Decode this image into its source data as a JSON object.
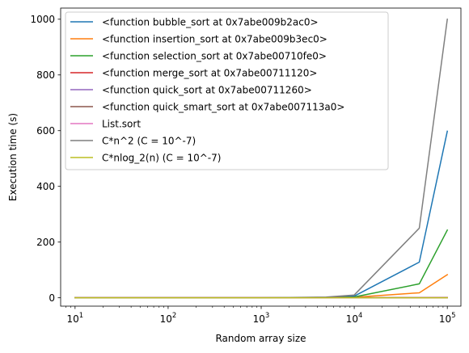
{
  "chart_data": {
    "type": "line",
    "xlabel": "Random array size",
    "ylabel": "Execution time (s)",
    "xscale": "log",
    "xlim": [
      7,
      140000
    ],
    "ylim": [
      -30,
      1040
    ],
    "x": [
      10,
      100,
      1000,
      5000,
      10000,
      50000,
      100000
    ],
    "xticks": [
      10,
      100,
      1000,
      10000,
      100000
    ],
    "xtick_labels": [
      {
        "base": "10",
        "exp": "1"
      },
      {
        "base": "10",
        "exp": "2"
      },
      {
        "base": "10",
        "exp": "3"
      },
      {
        "base": "10",
        "exp": "4"
      },
      {
        "base": "10",
        "exp": "5"
      }
    ],
    "yticks": [
      0,
      200,
      400,
      600,
      800,
      1000
    ],
    "ytick_labels": [
      "0",
      "200",
      "400",
      "600",
      "800",
      "1000"
    ],
    "legend_position": "top-left",
    "series": [
      {
        "name": "<function bubble_sort at 0x7abe009b2ac0>",
        "color": "#1f77b4",
        "values": [
          0,
          0,
          0,
          1.5,
          6,
          128,
          598
        ]
      },
      {
        "name": "<function insertion_sort at 0x7abe009b3ec0>",
        "color": "#ff7f0e",
        "values": [
          0,
          0,
          0,
          0.5,
          2,
          18,
          83
        ]
      },
      {
        "name": "<function selection_sort at 0x7abe00710fe0>",
        "color": "#2ca02c",
        "values": [
          0,
          0,
          0,
          0.8,
          3,
          50,
          243
        ]
      },
      {
        "name": "<function merge_sort at 0x7abe00711120>",
        "color": "#d62728",
        "values": [
          0,
          0,
          0,
          0,
          0.1,
          0.5,
          1
        ]
      },
      {
        "name": "<function quick_sort at 0x7abe00711260>",
        "color": "#9467bd",
        "values": [
          0,
          0,
          0,
          0,
          0.05,
          0.3,
          0.6
        ]
      },
      {
        "name": "<function quick_smart_sort at 0x7abe007113a0>",
        "color": "#8c564b",
        "values": [
          0,
          0,
          0,
          0,
          0.05,
          0.3,
          0.6
        ]
      },
      {
        "name": "List.sort",
        "color": "#e377c2",
        "values": [
          0,
          0,
          0,
          0,
          0,
          0.01,
          0.02
        ]
      },
      {
        "name": "C*n^2 (C = 10^-7)",
        "color": "#7f7f7f",
        "values": [
          1e-05,
          0.001,
          0.1,
          2.5,
          10,
          250,
          1000
        ]
      },
      {
        "name": "C*nlog_2(n) (C = 10^-7)",
        "color": "#bcbd22",
        "values": [
          3.3e-06,
          6.6e-05,
          0.001,
          0.0061,
          0.0133,
          0.078,
          0.166
        ]
      }
    ]
  }
}
